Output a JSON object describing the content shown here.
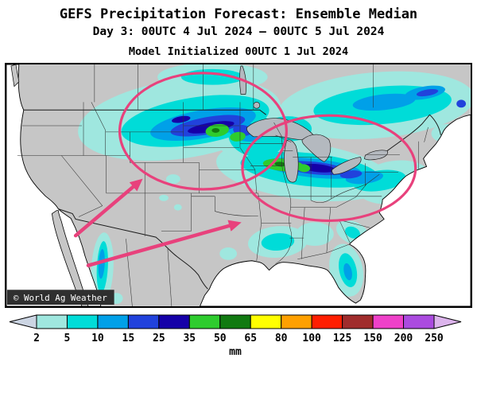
{
  "header": {
    "title": "GEFS Precipitation Forecast: Ensemble Median",
    "subtitle": "Day 3: 00UTC 4 Jul 2024 — 00UTC 5 Jul 2024",
    "model_init": "Model Initialized 00UTC 1 Jul 2024"
  },
  "map": {
    "watermark": "© World Ag Weather",
    "annotation_color": "#e8417c",
    "land_color": "#c6c6c6",
    "ocean_color": "#ffffff",
    "lake_color": "#b4b9bf"
  },
  "colorbar": {
    "under_arrow_color": "#ccd5e3",
    "segment_colors": [
      "#9fe7df",
      "#00dcd8",
      "#00a0e8",
      "#2142dc",
      "#1500a8",
      "#2ecc2e",
      "#117a11",
      "#ffff00",
      "#ffa000",
      "#ff1e00",
      "#a02c2c",
      "#ef41c9",
      "#ab4be0"
    ],
    "over_arrow_color": "#dcb4ec",
    "tick_labels": [
      "2",
      "5",
      "10",
      "15",
      "25",
      "35",
      "50",
      "65",
      "80",
      "100",
      "125",
      "150",
      "200",
      "250"
    ],
    "units_label": "mm"
  },
  "chart_data": {
    "type": "heatmap",
    "title": "GEFS Precipitation Forecast: Ensemble Median",
    "valid_period": "Day 3: 00UTC 4 Jul 2024 — 00UTC 5 Jul 2024",
    "initialization": "Model Initialized 00UTC 1 Jul 2024",
    "variable": "precipitation",
    "units": "mm",
    "scale_values": [
      2,
      5,
      10,
      15,
      25,
      35,
      50,
      65,
      80,
      100,
      125,
      150,
      200,
      250
    ],
    "legend_position": "bottom",
    "regions": [
      {
        "area": "Montana / North Dakota / Minnesota band",
        "peak_mm": "35-65"
      },
      {
        "area": "eastern South Dakota / southern Minnesota maxima",
        "peak_mm": "50-65"
      },
      {
        "area": "Missouri / Illinois / Indiana / Ohio Valley band",
        "peak_mm": "35-65"
      },
      {
        "area": "Great Lakes / Northeast / southeastern Canada",
        "peak_mm": "15-25"
      },
      {
        "area": "Mid-Atlantic coast (PA/NJ/VA)",
        "peak_mm": "10-15"
      },
      {
        "area": "Gulf Coast (Louisiana / Mississippi / Alabama)",
        "peak_mm": "5-10"
      },
      {
        "area": "Florida peninsula",
        "peak_mm": "10-15"
      },
      {
        "area": "Sierra Madre Occidental (northwest Mexico)",
        "peak_mm": "10-15"
      },
      {
        "area": "Colorado / New Mexico high terrain",
        "peak_mm": "2-5"
      }
    ],
    "annotations": [
      {
        "type": "ellipse",
        "target": "Northern Plains rainfall maximum"
      },
      {
        "type": "ellipse",
        "target": "Midwest / Ohio Valley rainfall maximum"
      },
      {
        "type": "arrow",
        "target": "points to Northern Plains ellipse"
      },
      {
        "type": "arrow",
        "target": "points to Midwest ellipse"
      }
    ]
  }
}
